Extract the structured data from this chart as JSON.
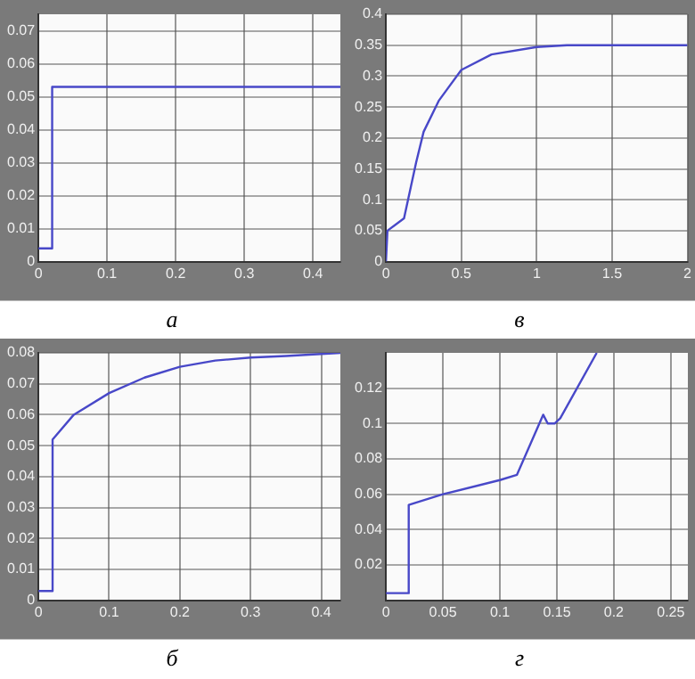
{
  "chart_data": [
    {
      "type": "line",
      "title": "а",
      "xlim": [
        0,
        0.44
      ],
      "xticks": [
        0,
        0.1,
        0.2,
        0.3,
        0.4
      ],
      "ylim": [
        0,
        0.075
      ],
      "yticks": [
        0,
        0.01,
        0.02,
        0.03,
        0.04,
        0.05,
        0.06,
        0.07
      ],
      "grid": true,
      "marker": "none",
      "line_style": "solid",
      "series": [
        {
          "color": "#4848c8",
          "x": [
            0,
            0.02,
            0.02,
            0.1,
            0.2,
            0.3,
            0.4,
            0.44
          ],
          "values": [
            0.004,
            0.004,
            0.053,
            0.053,
            0.053,
            0.053,
            0.053,
            0.053
          ]
        }
      ]
    },
    {
      "type": "line",
      "title": "в",
      "xlim": [
        0,
        2
      ],
      "xticks": [
        0,
        0.5,
        1,
        1.5,
        2
      ],
      "ylim": [
        0,
        0.4
      ],
      "yticks": [
        0,
        0.05,
        0.1,
        0.15,
        0.2,
        0.25,
        0.3,
        0.35,
        0.4
      ],
      "grid": true,
      "marker": "none",
      "line_style": "solid",
      "series": [
        {
          "color": "#4848c8",
          "x": [
            0,
            0.01,
            0.12,
            0.2,
            0.25,
            0.35,
            0.5,
            0.7,
            1,
            1.2,
            2
          ],
          "values": [
            0,
            0.05,
            0.07,
            0.16,
            0.21,
            0.26,
            0.31,
            0.335,
            0.347,
            0.35,
            0.35
          ]
        }
      ]
    },
    {
      "type": "line",
      "title": "б",
      "xlim": [
        0,
        0.427
      ],
      "xticks": [
        0,
        0.1,
        0.2,
        0.3,
        0.4
      ],
      "ylim": [
        0,
        0.08
      ],
      "yticks": [
        0,
        0.01,
        0.02,
        0.03,
        0.04,
        0.05,
        0.06,
        0.07,
        0.08
      ],
      "grid": true,
      "marker": "none",
      "line_style": "solid",
      "series": [
        {
          "color": "#4848c8",
          "x": [
            0,
            0.02,
            0.02,
            0.05,
            0.1,
            0.15,
            0.2,
            0.25,
            0.3,
            0.35,
            0.427
          ],
          "values": [
            0.003,
            0.003,
            0.052,
            0.06,
            0.067,
            0.072,
            0.0755,
            0.0775,
            0.0785,
            0.079,
            0.08
          ]
        }
      ]
    },
    {
      "type": "line",
      "title": "г",
      "xlim": [
        0,
        0.265
      ],
      "xticks": [
        0,
        0.05,
        0.1,
        0.15,
        0.2,
        0.25
      ],
      "ylim": [
        0,
        0.14
      ],
      "yticks": [
        0.02,
        0.04,
        0.06,
        0.08,
        0.1,
        0.12
      ],
      "grid": true,
      "marker": "none",
      "line_style": "solid",
      "series": [
        {
          "color": "#4848c8",
          "x": [
            0,
            0.02,
            0.02,
            0.05,
            0.1,
            0.115,
            0.138,
            0.142,
            0.148,
            0.153,
            0.185
          ],
          "values": [
            0.004,
            0.004,
            0.054,
            0.06,
            0.068,
            0.071,
            0.105,
            0.1,
            0.1,
            0.103,
            0.14
          ]
        }
      ]
    }
  ]
}
